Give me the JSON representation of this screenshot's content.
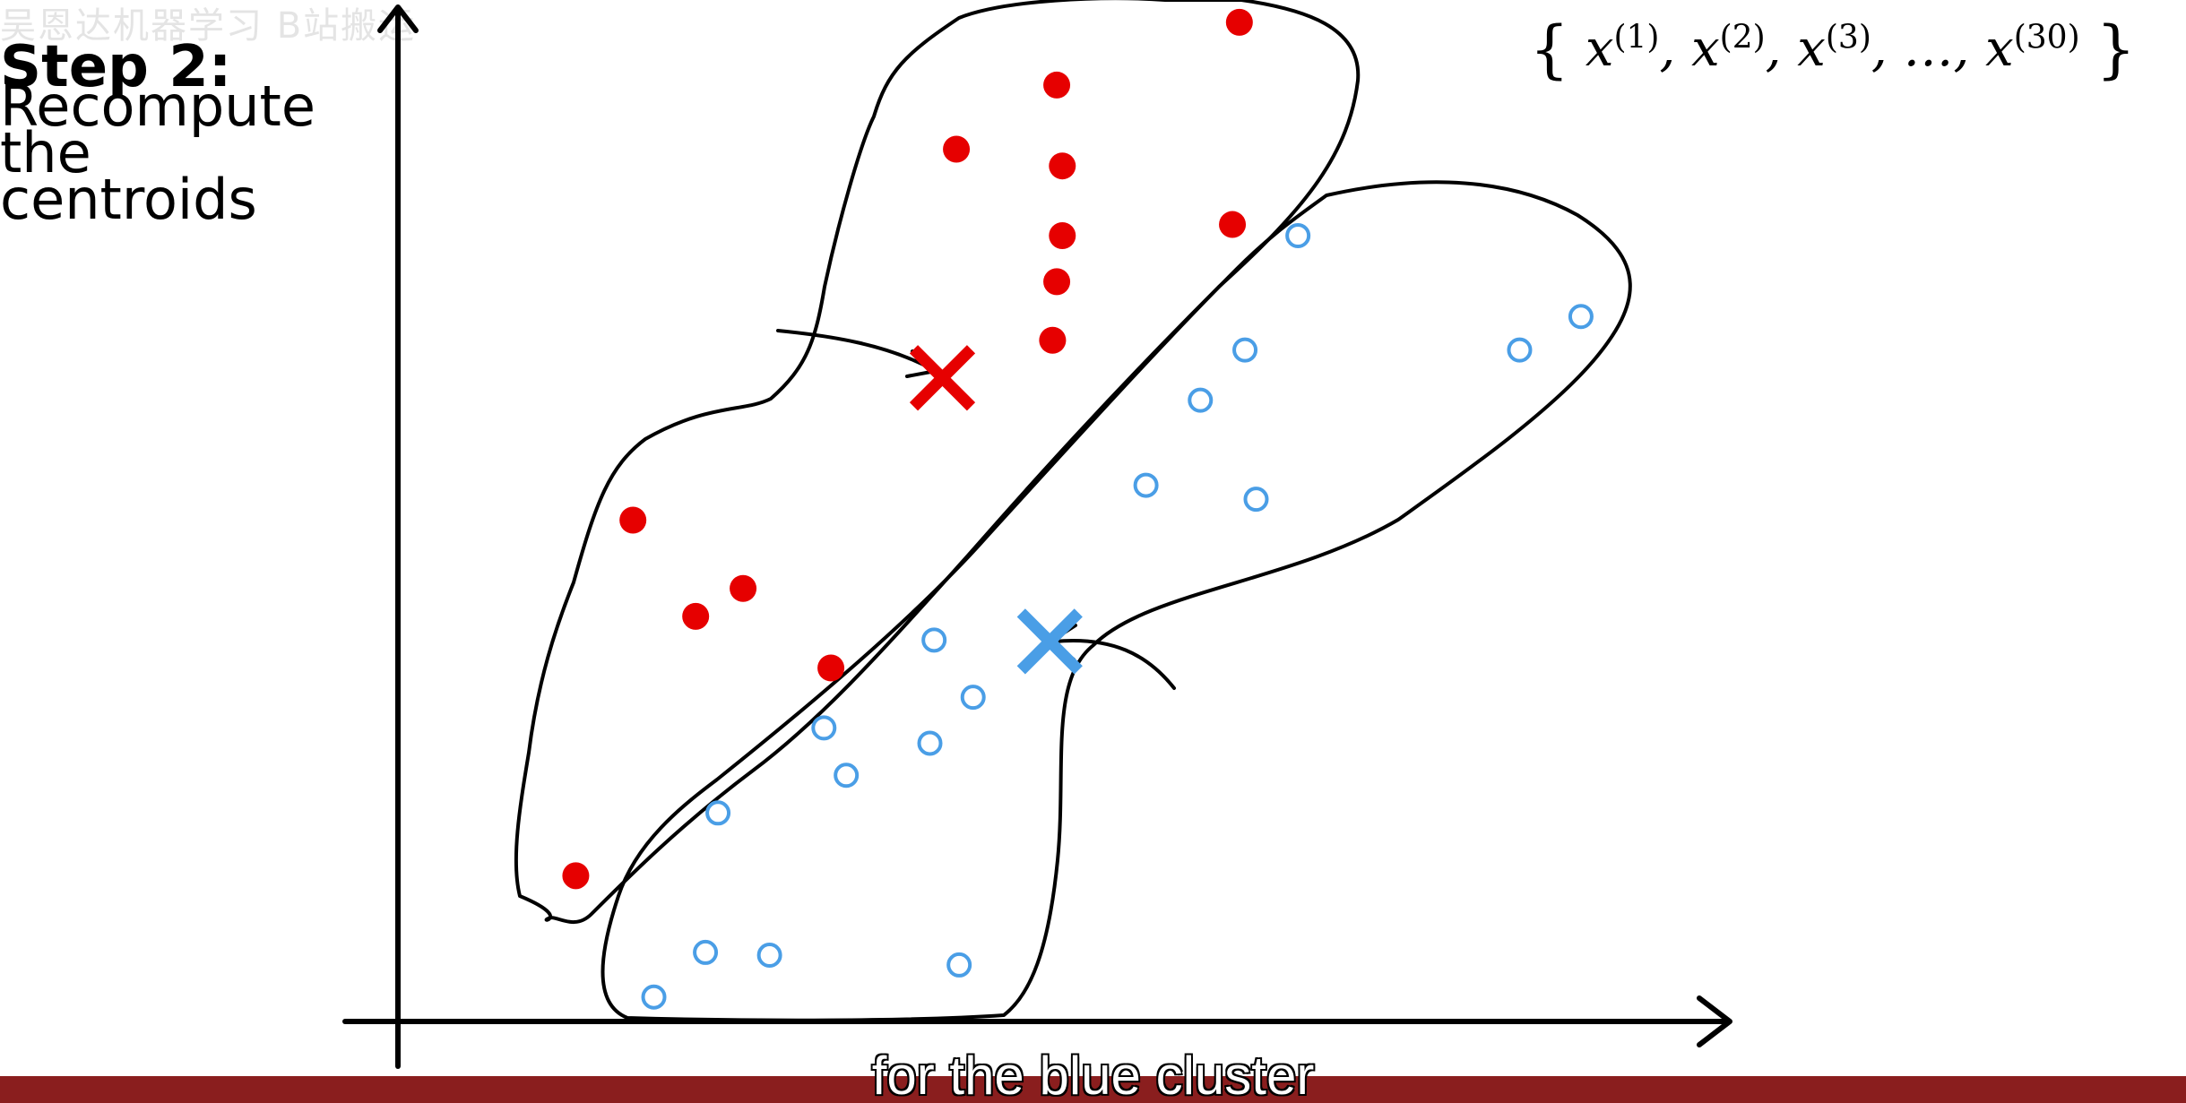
{
  "watermark": "吴恩达机器学习 B站搬运",
  "step": {
    "heading": "Step 2:",
    "lines": [
      "Recompute",
      "the",
      "centroids"
    ]
  },
  "formula": {
    "open": "{",
    "close": "}",
    "var": "x",
    "terms": [
      "(1)",
      "(2)",
      "(3)",
      "…",
      "(30)"
    ],
    "separator": ","
  },
  "subtitle": "for the blue cluster",
  "colors": {
    "red": "#e60000",
    "blue": "#4a9ee6",
    "subtitle_bar": "#8a1e1e"
  },
  "clusters": {
    "red": {
      "name": "red-cluster",
      "centroid": [
        676,
        271
      ],
      "points": [
        [
          889,
          16
        ],
        [
          758,
          61
        ],
        [
          686,
          107
        ],
        [
          762,
          119
        ],
        [
          884,
          161
        ],
        [
          762,
          169
        ],
        [
          758,
          202
        ],
        [
          755,
          244
        ],
        [
          454,
          373
        ],
        [
          533,
          422
        ],
        [
          499,
          442
        ],
        [
          596,
          479
        ],
        [
          413,
          628
        ]
      ]
    },
    "blue": {
      "name": "blue-cluster",
      "centroid": [
        753,
        460
      ],
      "points": [
        [
          931,
          169
        ],
        [
          1134,
          227
        ],
        [
          893,
          251
        ],
        [
          1090,
          251
        ],
        [
          861,
          287
        ],
        [
          822,
          348
        ],
        [
          901,
          358
        ],
        [
          670,
          459
        ],
        [
          698,
          500
        ],
        [
          591,
          522
        ],
        [
          667,
          533
        ],
        [
          607,
          556
        ],
        [
          515,
          583
        ],
        [
          506,
          683
        ],
        [
          552,
          685
        ],
        [
          688,
          692
        ],
        [
          469,
          715
        ]
      ]
    }
  }
}
